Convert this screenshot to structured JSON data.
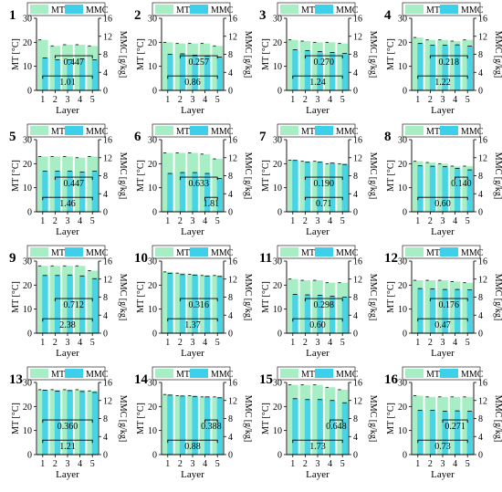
{
  "figure": {
    "legend_labels": [
      "MT",
      "MMC"
    ],
    "xlabel": "Layer",
    "ylabel_left": "MT [°C]",
    "ylabel_right": "MMC [g/kg]",
    "categories": [
      "1",
      "2",
      "3",
      "4",
      "5"
    ],
    "left_ticks": [
      "0",
      "10",
      "20",
      "30"
    ],
    "right_ticks": [
      "0",
      "4",
      "8",
      "12",
      "16"
    ],
    "colors": {
      "mt": "#a8eec4",
      "mmc": "#3ed0ea"
    }
  },
  "chart_data": [
    {
      "type": "bar",
      "panel": "1",
      "categories": [
        "1",
        "2",
        "3",
        "4",
        "5"
      ],
      "series": [
        {
          "name": "MT",
          "values": [
            21,
            18.5,
            19,
            19,
            18.5
          ]
        },
        {
          "name": "MMC",
          "values": [
            7.2,
            6.8,
            6.8,
            7.0,
            6.8
          ]
        }
      ],
      "ylim": [
        0,
        30
      ],
      "y2lim": [
        0,
        16
      ],
      "annotations": [
        {
          "text": "0.447",
          "bracket": [
            2,
            5
          ]
        },
        {
          "text": "1.01",
          "bracket": [
            1,
            5
          ]
        }
      ]
    },
    {
      "type": "bar",
      "panel": "2",
      "categories": [
        "1",
        "2",
        "3",
        "4",
        "5"
      ],
      "series": [
        {
          "name": "MT",
          "values": [
            20,
            19.5,
            19.5,
            19.5,
            18.5
          ]
        },
        {
          "name": "MMC",
          "values": [
            8.0,
            8.1,
            7.8,
            7.6,
            7.4
          ]
        }
      ],
      "ylim": [
        0,
        30
      ],
      "y2lim": [
        0,
        16
      ],
      "annotations": [
        {
          "text": "0.257",
          "bracket": [
            2,
            5
          ]
        },
        {
          "text": "0.86",
          "bracket": [
            1,
            5
          ]
        }
      ]
    },
    {
      "type": "bar",
      "panel": "3",
      "categories": [
        "1",
        "2",
        "3",
        "4",
        "5"
      ],
      "series": [
        {
          "name": "MT",
          "values": [
            21,
            20.5,
            20,
            20,
            19.5
          ]
        },
        {
          "name": "MMC",
          "values": [
            9.0,
            8.8,
            8.6,
            8.4,
            8.2
          ]
        }
      ],
      "ylim": [
        0,
        30
      ],
      "y2lim": [
        0,
        16
      ],
      "annotations": [
        {
          "text": "0.270",
          "bracket": [
            2,
            5
          ]
        },
        {
          "text": "1.24",
          "bracket": [
            1,
            5
          ]
        }
      ]
    },
    {
      "type": "bar",
      "panel": "4",
      "categories": [
        "1",
        "2",
        "3",
        "4",
        "5"
      ],
      "series": [
        {
          "name": "MT",
          "values": [
            22,
            21,
            21,
            20.5,
            21
          ]
        },
        {
          "name": "MMC",
          "values": [
            10.4,
            10.0,
            10.0,
            10.1,
            9.8
          ]
        }
      ],
      "ylim": [
        0,
        30
      ],
      "y2lim": [
        0,
        16
      ],
      "annotations": [
        {
          "text": "0.218",
          "bracket": [
            2,
            5
          ]
        },
        {
          "text": "1.22",
          "bracket": [
            1,
            5
          ]
        }
      ]
    },
    {
      "type": "bar",
      "panel": "5",
      "categories": [
        "1",
        "2",
        "3",
        "4",
        "5"
      ],
      "series": [
        {
          "name": "MT",
          "values": [
            23,
            23,
            23,
            22.5,
            23
          ]
        },
        {
          "name": "MMC",
          "values": [
            9.0,
            9.0,
            9.0,
            8.8,
            9.0
          ]
        }
      ],
      "ylim": [
        0,
        30
      ],
      "y2lim": [
        0,
        16
      ],
      "annotations": [
        {
          "text": "0.447",
          "bracket": [
            2,
            5
          ]
        },
        {
          "text": "1.46",
          "bracket": [
            1,
            5
          ]
        }
      ]
    },
    {
      "type": "bar",
      "panel": "6",
      "categories": [
        "1",
        "2",
        "3",
        "4",
        "5"
      ],
      "series": [
        {
          "name": "MT",
          "values": [
            24.5,
            24.5,
            24.5,
            24,
            22
          ]
        },
        {
          "name": "MMC",
          "values": [
            8.5,
            8.7,
            8.7,
            8.5,
            7.4
          ]
        }
      ],
      "ylim": [
        0,
        30
      ],
      "y2lim": [
        0,
        16
      ],
      "annotations": [
        {
          "text": "0.633",
          "bracket": [
            2,
            5
          ]
        },
        {
          "text": "1.81",
          "bracket": [
            4,
            5
          ]
        }
      ]
    },
    {
      "type": "bar",
      "panel": "7",
      "categories": [
        "1",
        "2",
        "3",
        "4",
        "5"
      ],
      "series": [
        {
          "name": "MT",
          "values": [
            21.5,
            21,
            21,
            20,
            20
          ]
        },
        {
          "name": "MMC",
          "values": [
            11.4,
            11.0,
            11.0,
            10.8,
            10.5
          ]
        }
      ],
      "ylim": [
        0,
        30
      ],
      "y2lim": [
        0,
        16
      ],
      "annotations": [
        {
          "text": "0.190",
          "bracket": [
            2,
            5
          ]
        },
        {
          "text": "0.71",
          "bracket": [
            2,
            5
          ]
        }
      ]
    },
    {
      "type": "bar",
      "panel": "8",
      "categories": [
        "1",
        "2",
        "3",
        "4",
        "5"
      ],
      "series": [
        {
          "name": "MT",
          "values": [
            21,
            20.5,
            20,
            19,
            19
          ]
        },
        {
          "name": "MMC",
          "values": [
            10.2,
            10.1,
            10.0,
            9.6,
            9.3
          ]
        }
      ],
      "ylim": [
        0,
        30
      ],
      "y2lim": [
        0,
        16
      ],
      "annotations": [
        {
          "text": "0.140",
          "bracket": [
            4,
            5
          ]
        },
        {
          "text": "0.60",
          "bracket": [
            1,
            5
          ]
        }
      ]
    },
    {
      "type": "bar",
      "panel": "9",
      "categories": [
        "1",
        "2",
        "3",
        "4",
        "5"
      ],
      "series": [
        {
          "name": "MT",
          "values": [
            28,
            28,
            28,
            28,
            26
          ]
        },
        {
          "name": "MMC",
          "values": [
            12.8,
            12.8,
            12.9,
            12.7,
            12.1
          ]
        }
      ],
      "ylim": [
        0,
        30
      ],
      "y2lim": [
        0,
        16
      ],
      "annotations": [
        {
          "text": "0.712",
          "bracket": [
            2,
            5
          ]
        },
        {
          "text": "2.38",
          "bracket": [
            1,
            5
          ]
        }
      ]
    },
    {
      "type": "bar",
      "panel": "10",
      "categories": [
        "1",
        "2",
        "3",
        "4",
        "5"
      ],
      "series": [
        {
          "name": "MT",
          "values": [
            25.5,
            25,
            24.5,
            24,
            24
          ]
        },
        {
          "name": "MMC",
          "values": [
            13.3,
            13.0,
            12.9,
            12.7,
            12.6
          ]
        }
      ],
      "ylim": [
        0,
        30
      ],
      "y2lim": [
        0,
        16
      ],
      "annotations": [
        {
          "text": "0.316",
          "bracket": [
            2,
            5
          ]
        },
        {
          "text": "1.37",
          "bracket": [
            1,
            5
          ]
        }
      ]
    },
    {
      "type": "bar",
      "panel": "11",
      "categories": [
        "1",
        "2",
        "3",
        "4",
        "5"
      ],
      "series": [
        {
          "name": "MT",
          "values": [
            22.5,
            22,
            22,
            21,
            21
          ]
        },
        {
          "name": "MMC",
          "values": [
            8.6,
            8.5,
            8.4,
            8.2,
            8.0
          ]
        }
      ],
      "ylim": [
        0,
        30
      ],
      "y2lim": [
        0,
        16
      ],
      "annotations": [
        {
          "text": "0.298",
          "bracket": [
            2,
            5
          ]
        },
        {
          "text": "0.60",
          "bracket": [
            1,
            5
          ]
        }
      ]
    },
    {
      "type": "bar",
      "panel": "12",
      "categories": [
        "1",
        "2",
        "3",
        "4",
        "5"
      ],
      "series": [
        {
          "name": "MT",
          "values": [
            22,
            22,
            22,
            21.5,
            21
          ]
        },
        {
          "name": "MMC",
          "values": [
            9.9,
            9.8,
            9.7,
            9.7,
            9.6
          ]
        }
      ],
      "ylim": [
        0,
        30
      ],
      "y2lim": [
        0,
        16
      ],
      "annotations": [
        {
          "text": "0.176",
          "bracket": [
            2,
            5
          ]
        },
        {
          "text": "0.47",
          "bracket": [
            1,
            5
          ]
        }
      ]
    },
    {
      "type": "bar",
      "panel": "13",
      "categories": [
        "1",
        "2",
        "3",
        "4",
        "5"
      ],
      "series": [
        {
          "name": "MT",
          "values": [
            27,
            27,
            27,
            27,
            26.5
          ]
        },
        {
          "name": "MMC",
          "values": [
            14.3,
            14.1,
            14.2,
            14.0,
            13.8
          ]
        }
      ],
      "ylim": [
        0,
        30
      ],
      "y2lim": [
        0,
        16
      ],
      "annotations": [
        {
          "text": "0.360",
          "bracket": [
            1,
            5
          ]
        },
        {
          "text": "1.21",
          "bracket": [
            1,
            5
          ]
        }
      ]
    },
    {
      "type": "bar",
      "panel": "14",
      "categories": [
        "1",
        "2",
        "3",
        "4",
        "5"
      ],
      "series": [
        {
          "name": "MT",
          "values": [
            25,
            24.5,
            24.5,
            24,
            24
          ]
        },
        {
          "name": "MMC",
          "values": [
            13.2,
            13.0,
            12.9,
            12.8,
            12.6
          ]
        }
      ],
      "ylim": [
        0,
        30
      ],
      "y2lim": [
        0,
        16
      ],
      "annotations": [
        {
          "text": "0.388",
          "bracket": [
            4,
            5
          ]
        },
        {
          "text": "0.88",
          "bracket": [
            1,
            5
          ]
        }
      ]
    },
    {
      "type": "bar",
      "panel": "15",
      "categories": [
        "1",
        "2",
        "3",
        "4",
        "5"
      ],
      "series": [
        {
          "name": "MT",
          "values": [
            29,
            29,
            29,
            28,
            27
          ]
        },
        {
          "name": "MMC",
          "values": [
            12.4,
            12.2,
            12.2,
            12.0,
            11.5
          ]
        }
      ],
      "ylim": [
        0,
        30
      ],
      "y2lim": [
        0,
        16
      ],
      "annotations": [
        {
          "text": "0.648",
          "bracket": [
            4,
            5
          ]
        },
        {
          "text": "1.73",
          "bracket": [
            1,
            5
          ]
        }
      ]
    },
    {
      "type": "bar",
      "panel": "16",
      "categories": [
        "1",
        "2",
        "3",
        "4",
        "5"
      ],
      "series": [
        {
          "name": "MT",
          "values": [
            24.5,
            24,
            24,
            24,
            24
          ]
        },
        {
          "name": "MMC",
          "values": [
            9.8,
            9.8,
            9.6,
            9.7,
            9.6
          ]
        }
      ],
      "ylim": [
        0,
        30
      ],
      "y2lim": [
        0,
        16
      ],
      "annotations": [
        {
          "text": "0.271",
          "bracket": [
            3,
            5
          ]
        },
        {
          "text": "0.73",
          "bracket": [
            1,
            5
          ]
        }
      ]
    }
  ]
}
